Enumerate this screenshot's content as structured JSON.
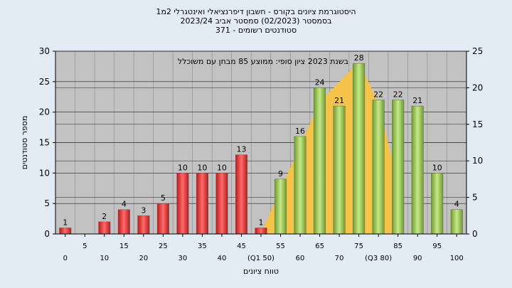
{
  "chart_data": {
    "type": "bar",
    "title": "היסטוגרמת ציונים בקורס - חשבון דיפרנציאלי ואינטגרלי 2מ1",
    "subtitle_lines": [
      "בסמסטר  (02/2023)  סמסטר אביב 2023/24",
      "סטודנטים רשומים - 371"
    ],
    "annotation": "בשנת 2023 ציון סופי: ממוצע 85 מבחן עם משוכלל",
    "xlabel": "טווח ציונים",
    "ylabel": "מספר סטודנטים",
    "ylim": [
      0,
      30
    ],
    "y2lim": [
      0,
      25
    ],
    "yticks": [
      0,
      5,
      10,
      15,
      20,
      25,
      30
    ],
    "y2ticks": [
      0,
      5,
      10,
      15,
      20,
      25
    ],
    "categories": [
      "0",
      "5",
      "10",
      "15",
      "20",
      "25",
      "30",
      "35",
      "40",
      "45",
      "50",
      "55",
      "60",
      "65",
      "70",
      "75",
      "80",
      "85",
      "90",
      "95",
      "100"
    ],
    "category_labels": [
      "0",
      "5",
      "10",
      "15",
      "20",
      "25",
      "30",
      "35",
      "40",
      "45",
      "(Q1 50)",
      "55",
      "60",
      "65",
      "70",
      "75",
      "(Q3 80)",
      "85",
      "90",
      "95",
      "100"
    ],
    "values": [
      1,
      0,
      2,
      4,
      3,
      5,
      10,
      10,
      10,
      13,
      1,
      9,
      16,
      24,
      21,
      28,
      22,
      22,
      21,
      10,
      4
    ],
    "value_labels": [
      "1",
      "",
      "2",
      "4",
      "3",
      "5",
      "10",
      "10",
      "10",
      "13",
      "1",
      "9",
      "16",
      "24",
      "21",
      "28",
      "22",
      "22",
      "21",
      "10",
      "4"
    ],
    "bar_colors": [
      "#e23a3a",
      "#e23a3a",
      "#e23a3a",
      "#e23a3a",
      "#e23a3a",
      "#e23a3a",
      "#e23a3a",
      "#e23a3a",
      "#e23a3a",
      "#e23a3a",
      "#e23a3a",
      "#8fc043",
      "#8fc043",
      "#8fc043",
      "#8fc043",
      "#8fc043",
      "#8fc043",
      "#8fc043",
      "#8fc043",
      "#8fc043",
      "#8fc043"
    ],
    "area_series": {
      "x": [
        50,
        65,
        75,
        80,
        85
      ],
      "values": [
        0,
        18,
        23.5,
        18,
        7
      ]
    },
    "colors": {
      "fail": "#e23a3a",
      "pass": "#8fc043",
      "area": "#f5c24a",
      "plot_bg": "#c2c2c2",
      "background": "#e3ecf5"
    },
    "grid": true
  }
}
